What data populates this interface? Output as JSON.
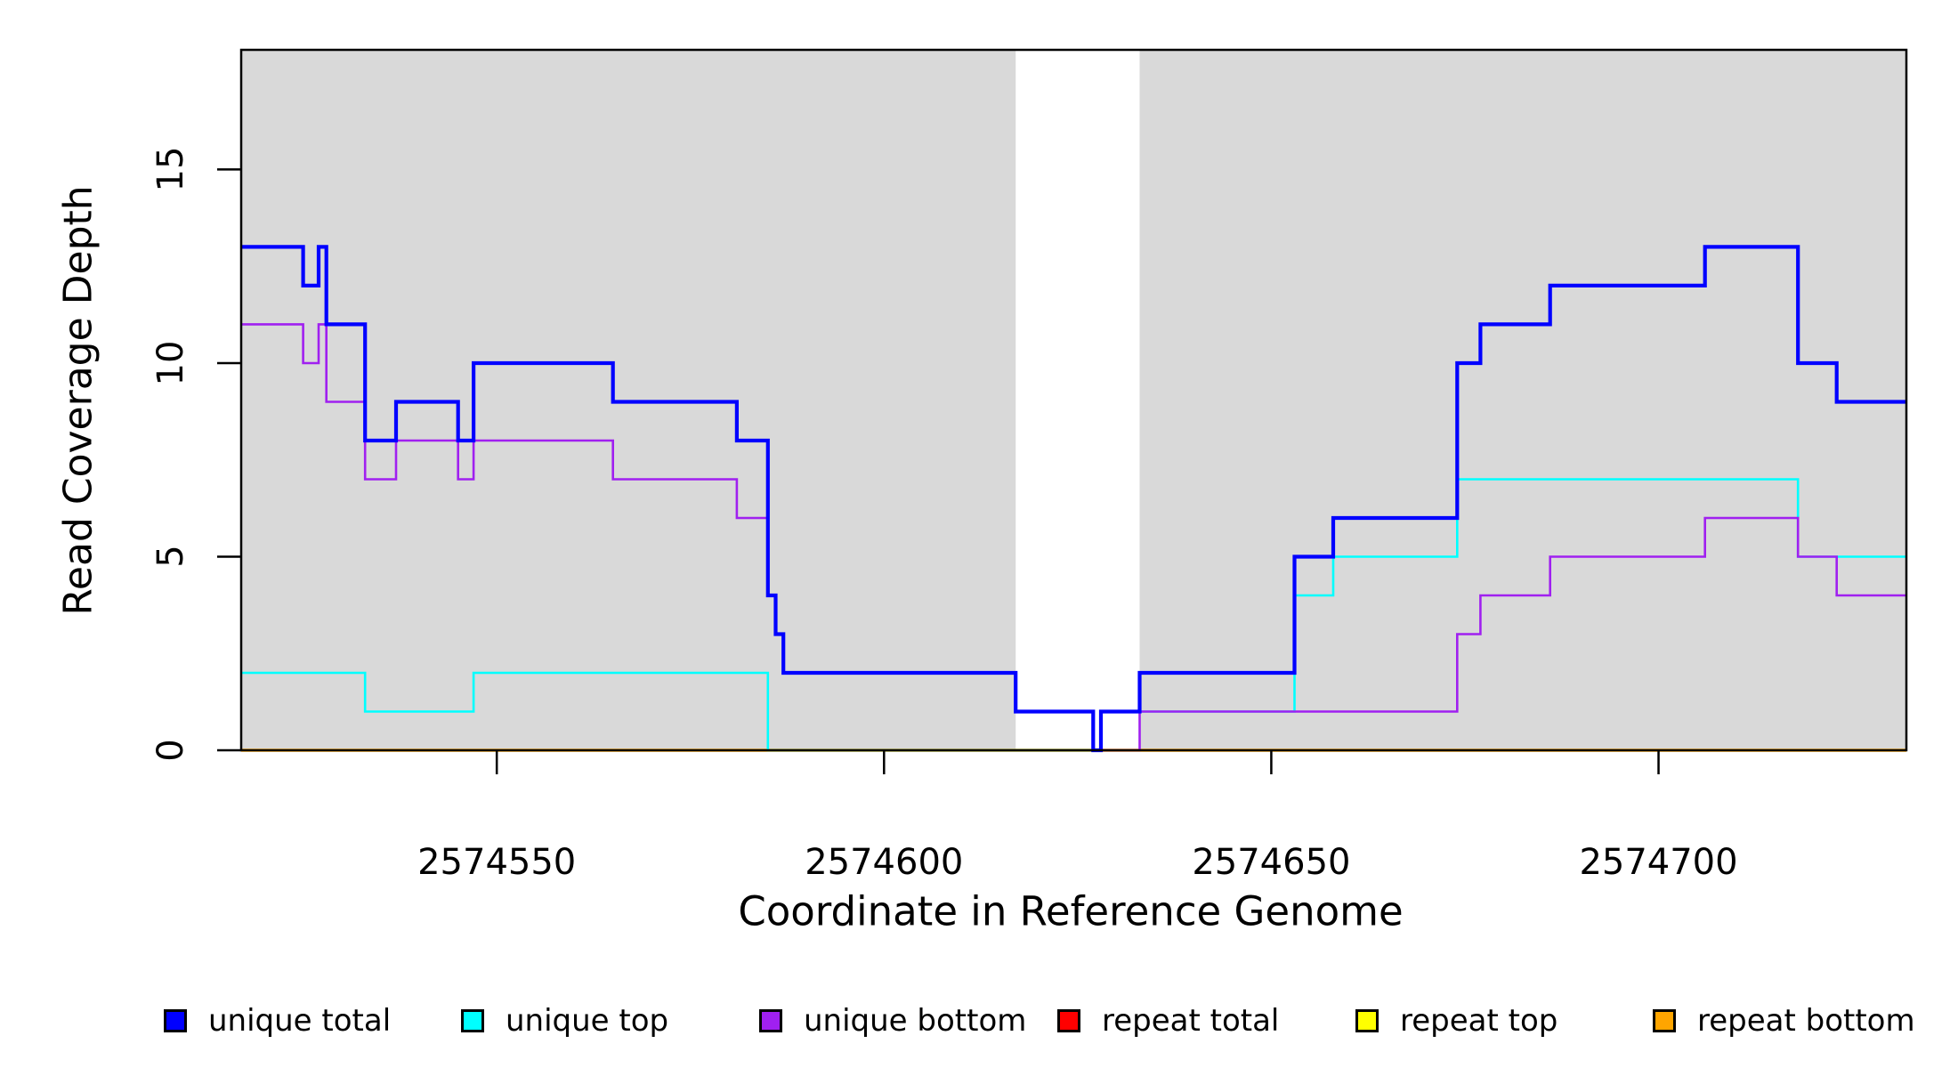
{
  "axes": {
    "x_label": "Coordinate in Reference Genome",
    "y_label": "Read Coverage Depth",
    "x_tick_labels": [
      "2574550",
      "2574600",
      "2574650",
      "2574700"
    ],
    "y_tick_labels": [
      "0",
      "5",
      "10",
      "15"
    ]
  },
  "legend": {
    "items": [
      {
        "label": "unique total",
        "color": "#0000FF"
      },
      {
        "label": "unique top",
        "color": "#00FFFF"
      },
      {
        "label": "unique bottom",
        "color": "#A020F0"
      },
      {
        "label": "repeat total",
        "color": "#FF0000"
      },
      {
        "label": "repeat top",
        "color": "#FFFF00"
      },
      {
        "label": "repeat bottom",
        "color": "#FFA500"
      }
    ]
  },
  "chart_data": {
    "type": "line",
    "subtype": "step",
    "title": "",
    "xlabel": "Coordinate in Reference Genome",
    "ylabel": "Read Coverage Depth",
    "xlim": [
      2574517,
      2574732
    ],
    "ylim": [
      0,
      18.09
    ],
    "x_ticks": [
      2574550,
      2574600,
      2574650,
      2574700
    ],
    "y_ticks": [
      0,
      5,
      10,
      15
    ],
    "grid": false,
    "legend_position": "bottom-horizontal",
    "plot_background": "#FFFFFF",
    "background_regions": [
      {
        "x_start": 2574517,
        "x_end": 2574617,
        "color": "#D9D9D9"
      },
      {
        "x_start": 2574633,
        "x_end": 2574732,
        "color": "#D9D9D9"
      }
    ],
    "series": [
      {
        "name": "repeat top",
        "color": "#FFFF00",
        "line_width": 3,
        "points": [
          [
            2574517,
            0
          ]
        ]
      },
      {
        "name": "repeat total",
        "color": "#FF0000",
        "line_width": 3,
        "points": [
          [
            2574517,
            0
          ]
        ]
      },
      {
        "name": "repeat bottom",
        "color": "#FFA500",
        "line_width": 3.6,
        "points": [
          [
            2574517,
            0
          ]
        ]
      },
      {
        "name": "unique top",
        "color": "#00FFFF",
        "line_width": 2.6,
        "points": [
          [
            2574517,
            2
          ],
          [
            2574533,
            1
          ],
          [
            2574547,
            2
          ],
          [
            2574585,
            0
          ],
          [
            2574628,
            1
          ],
          [
            2574653,
            4
          ],
          [
            2574658,
            5
          ],
          [
            2574674,
            7
          ],
          [
            2574718,
            5
          ]
        ]
      },
      {
        "name": "unique bottom",
        "color": "#A020F0",
        "line_width": 2.6,
        "points": [
          [
            2574517,
            11
          ],
          [
            2574525,
            10
          ],
          [
            2574527,
            11
          ],
          [
            2574528,
            9
          ],
          [
            2574533,
            7
          ],
          [
            2574537,
            8
          ],
          [
            2574545,
            7
          ],
          [
            2574547,
            8
          ],
          [
            2574565,
            7
          ],
          [
            2574581,
            6
          ],
          [
            2574585,
            4
          ],
          [
            2574586,
            3
          ],
          [
            2574587,
            2
          ],
          [
            2574617,
            1
          ],
          [
            2574627,
            0
          ],
          [
            2574633,
            1
          ],
          [
            2574674,
            3
          ],
          [
            2574677,
            4
          ],
          [
            2574686,
            5
          ],
          [
            2574706,
            6
          ],
          [
            2574718,
            5
          ],
          [
            2574723,
            4
          ]
        ]
      },
      {
        "name": "unique total",
        "color": "#0000FF",
        "line_width": 4.2,
        "points": [
          [
            2574517,
            13
          ],
          [
            2574525,
            12
          ],
          [
            2574527,
            13
          ],
          [
            2574528,
            11
          ],
          [
            2574533,
            8
          ],
          [
            2574537,
            9
          ],
          [
            2574545,
            8
          ],
          [
            2574547,
            10
          ],
          [
            2574565,
            9
          ],
          [
            2574581,
            8
          ],
          [
            2574585,
            4
          ],
          [
            2574586,
            3
          ],
          [
            2574587,
            2
          ],
          [
            2574617,
            1
          ],
          [
            2574627,
            0
          ],
          [
            2574628,
            1
          ],
          [
            2574633,
            2
          ],
          [
            2574653,
            5
          ],
          [
            2574658,
            6
          ],
          [
            2574674,
            10
          ],
          [
            2574677,
            11
          ],
          [
            2574686,
            12
          ],
          [
            2574706,
            13
          ],
          [
            2574718,
            10
          ],
          [
            2574723,
            9
          ]
        ]
      }
    ]
  }
}
